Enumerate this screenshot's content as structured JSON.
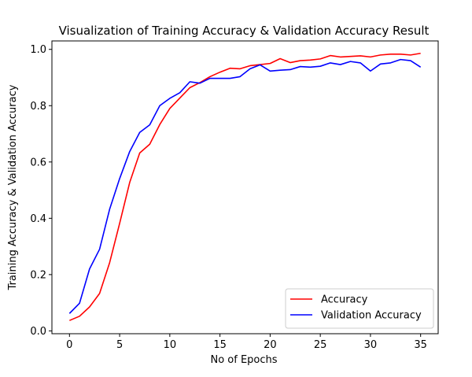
{
  "chart_data": {
    "type": "line",
    "title": "Visualization of Training Accuracy & Validation Accuracy Result",
    "xlabel": "No of Epochs",
    "ylabel": "Training Accuracy & Validation Accuracy",
    "xlim": [
      -1.75,
      36.75
    ],
    "ylim": [
      -0.01,
      1.03
    ],
    "xticks": [
      0,
      5,
      10,
      15,
      20,
      25,
      30,
      35
    ],
    "yticks": [
      0.0,
      0.2,
      0.4,
      0.6,
      0.8,
      1.0
    ],
    "ytick_labels": [
      "0.0",
      "0.2",
      "0.4",
      "0.6",
      "0.8",
      "1.0"
    ],
    "grid": false,
    "legend_position": "lower right",
    "x": [
      0,
      1,
      2,
      3,
      4,
      5,
      6,
      7,
      8,
      9,
      10,
      11,
      12,
      13,
      14,
      15,
      16,
      17,
      18,
      19,
      20,
      21,
      22,
      23,
      24,
      25,
      26,
      27,
      28,
      29,
      30,
      31,
      32,
      33,
      34,
      35
    ],
    "series": [
      {
        "name": "Accuracy",
        "color": "#ff0000",
        "values": [
          0.037,
          0.052,
          0.085,
          0.133,
          0.242,
          0.382,
          0.527,
          0.632,
          0.663,
          0.733,
          0.79,
          0.827,
          0.864,
          0.882,
          0.903,
          0.919,
          0.933,
          0.931,
          0.942,
          0.946,
          0.95,
          0.967,
          0.953,
          0.96,
          0.962,
          0.966,
          0.978,
          0.973,
          0.975,
          0.977,
          0.973,
          0.98,
          0.983,
          0.983,
          0.98,
          0.986
        ]
      },
      {
        "name": "Validation Accuracy",
        "color": "#0000ff",
        "values": [
          0.062,
          0.098,
          0.22,
          0.29,
          0.432,
          0.541,
          0.637,
          0.705,
          0.732,
          0.8,
          0.826,
          0.846,
          0.885,
          0.88,
          0.897,
          0.897,
          0.897,
          0.903,
          0.931,
          0.945,
          0.923,
          0.926,
          0.928,
          0.939,
          0.937,
          0.94,
          0.952,
          0.946,
          0.957,
          0.952,
          0.923,
          0.948,
          0.952,
          0.964,
          0.96,
          0.937
        ]
      }
    ]
  }
}
